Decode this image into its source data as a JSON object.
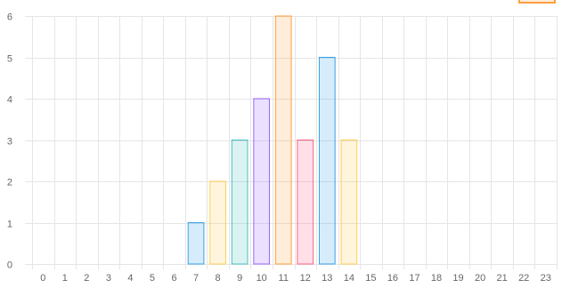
{
  "chart_data": {
    "type": "bar",
    "categories": [
      "0",
      "1",
      "2",
      "3",
      "4",
      "5",
      "6",
      "7",
      "8",
      "9",
      "10",
      "11",
      "12",
      "13",
      "14",
      "15",
      "16",
      "17",
      "18",
      "19",
      "20",
      "21",
      "22",
      "23"
    ],
    "values": [
      0,
      0,
      0,
      0,
      0,
      0,
      0,
      1,
      2,
      3,
      4,
      6,
      3,
      5,
      3,
      0,
      0,
      0,
      0,
      0,
      0,
      0,
      0,
      0
    ],
    "ylim": [
      0,
      6
    ],
    "yticks": [
      "0",
      "1",
      "2",
      "3",
      "4",
      "5",
      "6"
    ],
    "grid": true,
    "colors": {
      "fills": [
        "rgba(54,162,235,0.2)",
        "rgba(255,206,86,0.2)",
        "rgba(75,192,192,0.2)",
        "rgba(153,102,255,0.2)",
        "rgba(255,159,64,0.2)",
        "rgba(255,99,132,0.2)"
      ],
      "borders": [
        "#36a2eb",
        "#ffce56",
        "#4bc0c0",
        "#9966ff",
        "#ff9f40",
        "#ff6384"
      ],
      "grid": "#e5e5e5",
      "tick_text": "#666666",
      "legend_swatch": "#ff9f40"
    }
  }
}
